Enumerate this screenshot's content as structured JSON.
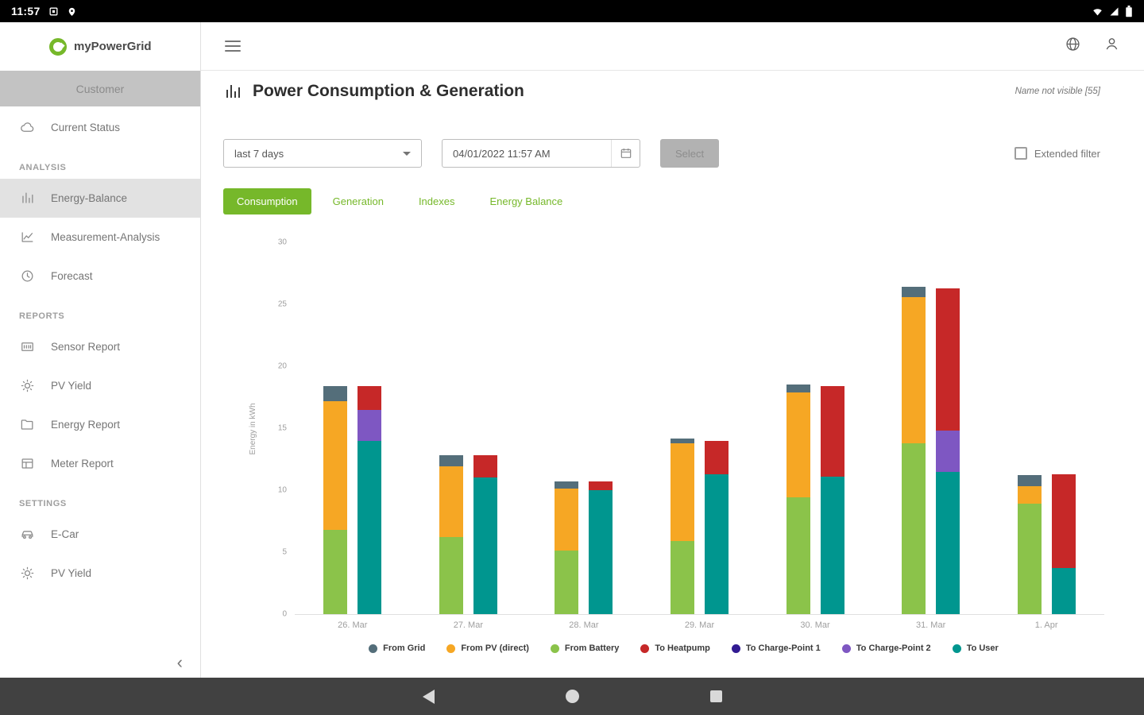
{
  "status_bar": {
    "time": "11:57"
  },
  "brand": {
    "name": "myPowerGrid"
  },
  "sidebar": {
    "customer_header": "Customer",
    "groups": [
      {
        "label": "",
        "items": [
          {
            "icon": "cloud",
            "label": "Current Status",
            "active": false
          }
        ]
      },
      {
        "label": "ANALYSIS",
        "items": [
          {
            "icon": "bar-chart",
            "label": "Energy-Balance",
            "active": true
          },
          {
            "icon": "line-chart",
            "label": "Measurement-Analysis",
            "active": false
          },
          {
            "icon": "clock",
            "label": "Forecast",
            "active": false
          }
        ]
      },
      {
        "label": "REPORTS",
        "items": [
          {
            "icon": "sensor",
            "label": "Sensor Report",
            "active": false
          },
          {
            "icon": "sun",
            "label": "PV Yield",
            "active": false
          },
          {
            "icon": "folder",
            "label": "Energy Report",
            "active": false
          },
          {
            "icon": "table",
            "label": "Meter Report",
            "active": false
          }
        ]
      },
      {
        "label": "SETTINGS",
        "items": [
          {
            "icon": "car",
            "label": "E-Car",
            "active": false
          },
          {
            "icon": "sun",
            "label": "PV Yield",
            "active": false
          }
        ]
      }
    ]
  },
  "header": {
    "title": "Power Consumption & Generation",
    "note": "Name not visible [55]"
  },
  "filters": {
    "range_value": "last 7 days",
    "date_value": "04/01/2022 11:57 AM",
    "select_label": "Select",
    "extended_filter_label": "Extended filter"
  },
  "tabs": [
    {
      "label": "Consumption",
      "active": true
    },
    {
      "label": "Generation",
      "active": false
    },
    {
      "label": "Indexes",
      "active": false
    },
    {
      "label": "Energy Balance",
      "active": false
    }
  ],
  "chart_data": {
    "type": "bar",
    "stacked": true,
    "title": "Power Consumption & Generation",
    "ylabel": "Energy in kWh",
    "ylim": [
      0,
      30
    ],
    "yticks": [
      0,
      5,
      10,
      15,
      20,
      25,
      30
    ],
    "categories": [
      "26. Mar",
      "27. Mar",
      "28. Mar",
      "29. Mar",
      "30. Mar",
      "31. Mar",
      "1. Apr"
    ],
    "bar_pairs": {
      "sources": [
        {
          "name": "From Battery",
          "color": "#8BC34A",
          "values": [
            6.8,
            6.2,
            5.1,
            5.9,
            9.4,
            13.8,
            8.9
          ]
        },
        {
          "name": "From PV (direct)",
          "color": "#F6A724",
          "values": [
            10.4,
            5.7,
            5.0,
            7.9,
            8.5,
            11.8,
            1.4
          ]
        },
        {
          "name": "From Grid",
          "color": "#546E7A",
          "values": [
            1.2,
            0.9,
            0.6,
            0.4,
            0.6,
            0.8,
            0.9
          ]
        }
      ],
      "sinks": [
        {
          "name": "To User",
          "color": "#00968F",
          "values": [
            14.0,
            11.0,
            10.0,
            11.3,
            11.1,
            11.5,
            3.7
          ]
        },
        {
          "name": "To Charge-Point 1",
          "color": "#311B92",
          "values": [
            0,
            0,
            0,
            0,
            0,
            0,
            0
          ]
        },
        {
          "name": "To Charge-Point 2",
          "color": "#7E57C2",
          "values": [
            2.5,
            0,
            0,
            0,
            0,
            3.3,
            0
          ]
        },
        {
          "name": "To Heatpump",
          "color": "#C62828",
          "values": [
            1.9,
            1.8,
            0.7,
            2.7,
            7.3,
            11.5,
            7.6
          ]
        }
      ]
    },
    "legend": [
      {
        "name": "From Grid",
        "color": "#546E7A"
      },
      {
        "name": "From PV (direct)",
        "color": "#F6A724"
      },
      {
        "name": "From Battery",
        "color": "#8BC34A"
      },
      {
        "name": "To Heatpump",
        "color": "#C62828"
      },
      {
        "name": "To Charge-Point 1",
        "color": "#311B92"
      },
      {
        "name": "To Charge-Point 2",
        "color": "#7E57C2"
      },
      {
        "name": "To User",
        "color": "#00968F"
      }
    ],
    "legend_position": "bottom",
    "grid": false
  }
}
